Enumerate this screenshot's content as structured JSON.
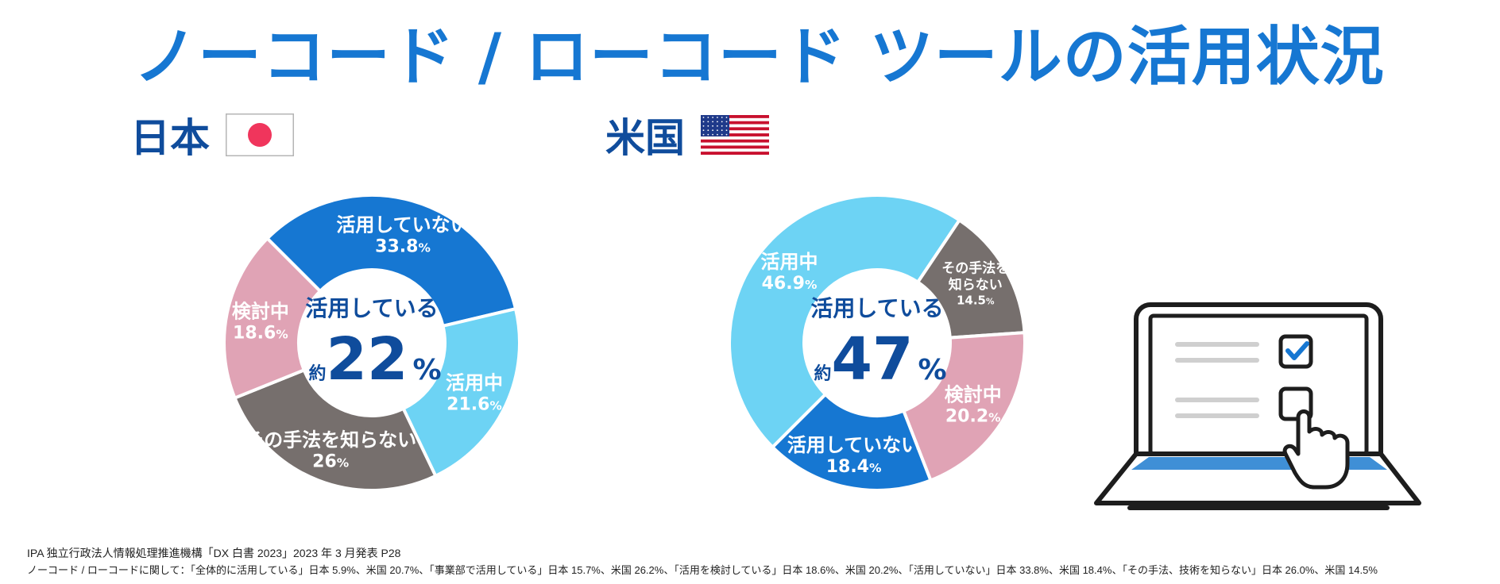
{
  "page_title": "ノーコード / ローコード ツールの活用状況",
  "chart_data": [
    {
      "type": "pie",
      "donut": true,
      "title": "日本",
      "flag": "japan-flag",
      "center": {
        "line1": "活用している",
        "prefix": "約",
        "value": "22",
        "unit": "%"
      },
      "segments": [
        {
          "label": "活用していない",
          "value": 33.8,
          "value_text": "33.8",
          "color": "#1677d2"
        },
        {
          "label": "活用中",
          "value": 21.6,
          "value_text": "21.6",
          "color": "#6dd3f4"
        },
        {
          "label": "その手法を知らない",
          "value": 26.0,
          "value_text": "26",
          "color": "#766f6d"
        },
        {
          "label": "検討中",
          "value": 18.6,
          "value_text": "18.6",
          "color": "#e0a3b5"
        }
      ]
    },
    {
      "type": "pie",
      "donut": true,
      "title": "米国",
      "flag": "usa-flag",
      "center": {
        "line1": "活用している",
        "prefix": "約",
        "value": "47",
        "unit": "%"
      },
      "segments": [
        {
          "label": "活用中",
          "value": 46.9,
          "value_text": "46.9",
          "color": "#6dd3f4"
        },
        {
          "label": "その手法を知らない",
          "value": 14.5,
          "value_text": "14.5",
          "color": "#766f6d"
        },
        {
          "label": "検討中",
          "value": 20.2,
          "value_text": "20.2",
          "color": "#e0a3b5"
        },
        {
          "label": "活用していない",
          "value": 18.4,
          "value_text": "18.4",
          "color": "#1677d2"
        }
      ]
    }
  ],
  "source_line": "IPA 独立行政法人情報処理推進機構「DX 白書 2023」2023 年 3 月発表 P28",
  "note_line": "ノーコード / ローコードに関して：「全体的に活用している」日本 5.9%、米国 20.7%、「事業部で活用している」日本 15.7%、米国 26.2%、「活用を検討している」日本 18.6%、米国 20.2%、「活用していない」日本 33.8%、米国 18.4%、「その手法、技術を知らない」日本 26.0%、米国 14.5%",
  "illustration": "laptop-checklist-icon"
}
